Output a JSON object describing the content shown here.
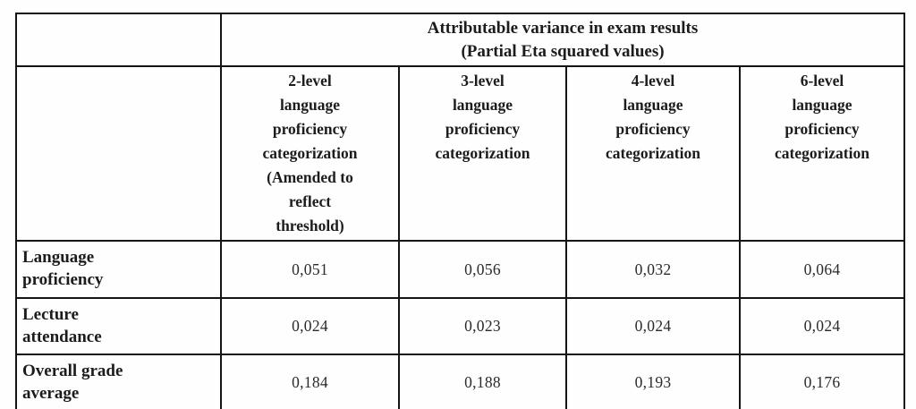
{
  "table": {
    "title": "Attributable variance in exam results (Partial Eta squared values)",
    "spanning_header_lines": [
      "Attributable variance in exam results",
      "(Partial Eta squared values)"
    ],
    "column_headers": [
      {
        "id": "2-level",
        "lines": [
          "2-level",
          "language",
          "proficiency",
          "categorization",
          "(Amended to",
          "reflect",
          "threshold)"
        ],
        "full_text": "2-level language proficiency categorization (Amended to reflect threshold)"
      },
      {
        "id": "3-level",
        "lines": [
          "3-level",
          "language",
          "proficiency",
          "categorization"
        ],
        "full_text": "3-level language proficiency categorization"
      },
      {
        "id": "4-level",
        "lines": [
          "4-level",
          "language",
          "proficiency",
          "categorization"
        ],
        "full_text": "4-level language proficiency categorization"
      },
      {
        "id": "6-level",
        "lines": [
          "6-level",
          "language",
          "proficiency",
          "categorization"
        ],
        "full_text": "6-level language proficiency categorization"
      }
    ],
    "rows": [
      {
        "label_lines": [
          "Language",
          "proficiency"
        ],
        "label": "Language proficiency",
        "values": [
          "0,051",
          "0,056",
          "0,032",
          "0,064"
        ]
      },
      {
        "label_lines": [
          "Lecture",
          "attendance"
        ],
        "label": "Lecture attendance",
        "values": [
          "0,024",
          "0,023",
          "0,024",
          "0,024"
        ]
      },
      {
        "label_lines": [
          "Overall grade",
          "average"
        ],
        "label": "Overall grade average",
        "values": [
          "0,184",
          "0,188",
          "0,193",
          "0,176"
        ]
      }
    ],
    "colors": {
      "border": "#141414",
      "text": "#1c1c1c",
      "background": "#fefefe"
    }
  }
}
